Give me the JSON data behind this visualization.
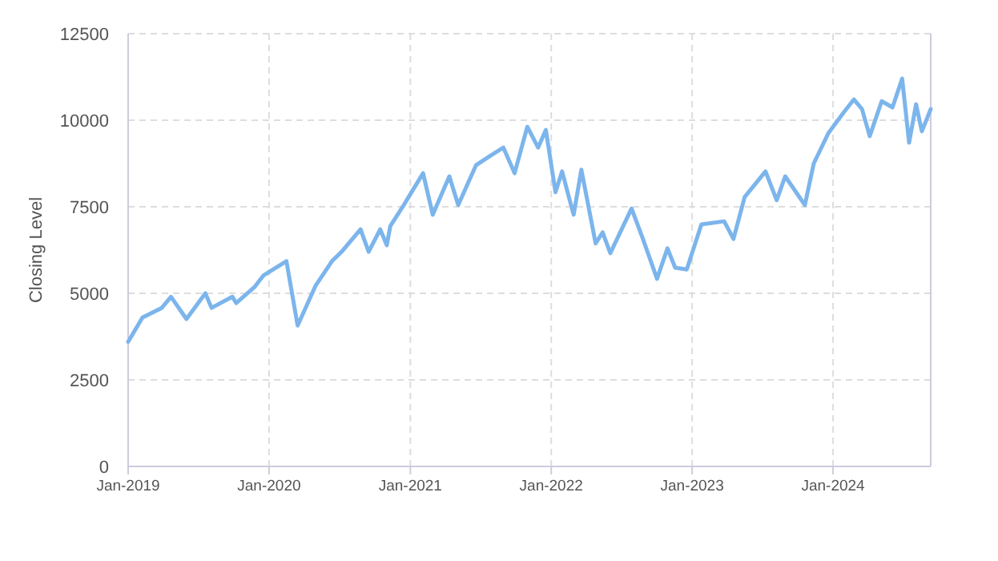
{
  "chart_data": {
    "type": "line",
    "ylabel": "Closing Level",
    "x": [
      "2019-01-01",
      "2019-02-07",
      "2019-03-29",
      "2019-04-22",
      "2019-06-01",
      "2019-07-20",
      "2019-08-05",
      "2019-09-28",
      "2019-10-08",
      "2019-11-25",
      "2019-12-17",
      "2020-02-15",
      "2020-03-15",
      "2020-05-01",
      "2020-06-12",
      "2020-07-07",
      "2020-08-25",
      "2020-09-15",
      "2020-10-15",
      "2020-11-01",
      "2020-11-10",
      "2020-12-15",
      "2021-02-03",
      "2021-02-28",
      "2021-04-12",
      "2021-05-05",
      "2021-06-20",
      "2021-07-28",
      "2021-08-30",
      "2021-09-28",
      "2021-10-31",
      "2021-11-28",
      "2021-12-18",
      "2022-01-12",
      "2022-01-29",
      "2022-02-28",
      "2022-03-20",
      "2022-04-26",
      "2022-05-14",
      "2022-06-03",
      "2022-07-28",
      "2022-08-25",
      "2022-10-02",
      "2022-10-29",
      "2022-11-18",
      "2022-12-18",
      "2023-01-25",
      "2023-03-25",
      "2023-04-18",
      "2023-05-17",
      "2023-07-10",
      "2023-08-08",
      "2023-08-30",
      "2023-10-20",
      "2023-11-12",
      "2023-12-20",
      "2024-01-29",
      "2024-02-24",
      "2024-03-16",
      "2024-04-05",
      "2024-05-06",
      "2024-06-03",
      "2024-06-28",
      "2024-07-16",
      "2024-08-03",
      "2024-08-18",
      "2024-09-10"
    ],
    "series": [
      {
        "color": "#7cb5ec",
        "values": [
          3600,
          4300,
          4580,
          4900,
          4260,
          5000,
          4580,
          4900,
          4720,
          5190,
          5510,
          5930,
          4070,
          5230,
          5930,
          6200,
          6850,
          6200,
          6850,
          6390,
          6940,
          7550,
          8470,
          7270,
          8380,
          7550,
          8700,
          8980,
          9210,
          8470,
          9810,
          9210,
          9720,
          7920,
          8520,
          7270,
          8570,
          6440,
          6760,
          6160,
          7450,
          6620,
          5420,
          6300,
          5740,
          5690,
          6990,
          7080,
          6570,
          7780,
          8520,
          7690,
          8380,
          7550,
          8750,
          9630,
          10230,
          10600,
          10320,
          9540,
          10550,
          10370,
          11200,
          9350,
          10460,
          9680,
          10320
        ]
      }
    ],
    "xlim": [
      "2019-01-01",
      "2024-09-10"
    ],
    "xticks": [
      {
        "value": "2019-01-01",
        "label": "Jan-2019"
      },
      {
        "value": "2020-01-01",
        "label": "Jan-2020"
      },
      {
        "value": "2021-01-01",
        "label": "Jan-2021"
      },
      {
        "value": "2022-01-01",
        "label": "Jan-2022"
      },
      {
        "value": "2023-01-01",
        "label": "Jan-2023"
      },
      {
        "value": "2024-01-01",
        "label": "Jan-2024"
      }
    ],
    "ylim": [
      0,
      12500
    ],
    "yticks": [
      0,
      2500,
      5000,
      7500,
      10000,
      12500
    ],
    "grid": true,
    "line_style": "solid"
  }
}
